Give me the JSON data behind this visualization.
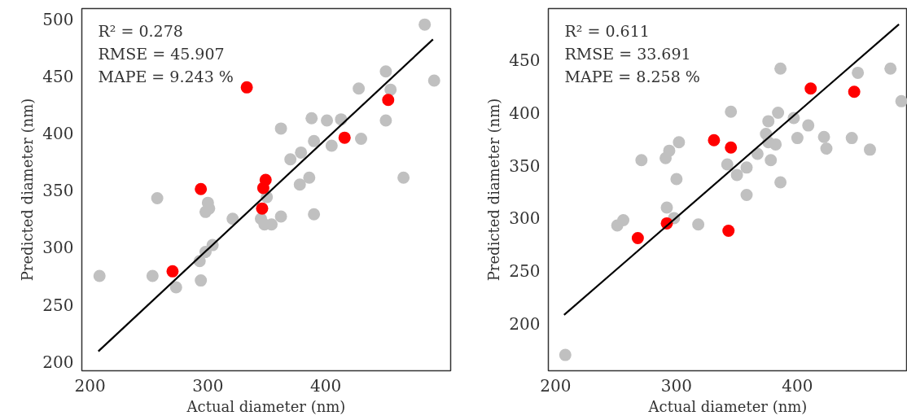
{
  "chart_data": [
    {
      "type": "scatter",
      "xlabel": "Actual diameter (nm)",
      "ylabel": "Predicted diameter (nm)",
      "xlim": [
        193,
        506
      ],
      "ylim": [
        192,
        509
      ],
      "xticks": [
        200,
        300,
        400
      ],
      "yticks": [
        200,
        250,
        300,
        350,
        400,
        450,
        500
      ],
      "annotations": [
        "R² = 0.278",
        "RMSE = 45.907",
        "MAPE = 9.243 %"
      ],
      "series": [
        {
          "marker": "circle",
          "color": "#c0c0c0",
          "x": [
            208,
            253,
            257,
            273,
            294,
            293,
            298,
            304,
            298,
            301,
            300,
            321,
            345,
            348,
            354,
            362,
            390,
            350,
            378,
            386,
            466,
            370,
            379,
            405,
            430,
            390,
            362,
            388,
            401,
            413,
            451,
            428,
            451,
            455,
            492,
            484
          ],
          "values": [
            275,
            275,
            343,
            265,
            271,
            288,
            296,
            302,
            331,
            334,
            339,
            325,
            325,
            320,
            320,
            327,
            329,
            344,
            355,
            361,
            361,
            377,
            383,
            389,
            395,
            393,
            404,
            413,
            411,
            412,
            411,
            439,
            454,
            438,
            446,
            495
          ]
        },
        {
          "marker": "circle",
          "color": "#ff0000",
          "x": [
            270,
            346,
            333,
            453,
            416,
            294,
            349,
            347
          ],
          "values": [
            279,
            334,
            440,
            429,
            396,
            351,
            359,
            352
          ]
        },
        {
          "type": "line",
          "color": "#000000",
          "x": [
            207,
            491
          ],
          "values": [
            209,
            482
          ]
        }
      ]
    },
    {
      "type": "scatter",
      "xlabel": "Actual diameter (nm)",
      "ylabel": "Predicted diameter (nm)",
      "xlim": [
        194,
        491
      ],
      "ylim": [
        155,
        499
      ],
      "xticks": [
        200,
        300,
        400
      ],
      "yticks": [
        200,
        250,
        300,
        350,
        400,
        450
      ],
      "annotations": [
        "R² = 0.611",
        "RMSE = 33.691",
        "MAPE = 8.258 %"
      ],
      "series": [
        {
          "marker": "circle",
          "color": "#c0c0c0",
          "x": [
            386,
            450,
            477,
            486,
            345,
            384,
            376,
            397,
            409,
            374,
            400,
            422,
            445,
            424,
            460,
            382,
            376,
            367,
            378,
            302,
            294,
            291,
            271,
            342,
            358,
            350,
            300,
            386,
            358,
            292,
            251,
            256,
            298,
            318,
            208
          ],
          "values": [
            442,
            438,
            442,
            411,
            401,
            400,
            392,
            395,
            388,
            380,
            376,
            377,
            376,
            366,
            365,
            370,
            372,
            361,
            355,
            372,
            364,
            357,
            355,
            351,
            348,
            341,
            337,
            334,
            322,
            310,
            293,
            298,
            300,
            294,
            170
          ]
        },
        {
          "marker": "circle",
          "color": "#ff0000",
          "x": [
            411,
            447,
            331,
            345,
            268,
            292,
            343
          ],
          "values": [
            423,
            420,
            374,
            367,
            281,
            295,
            288
          ]
        },
        {
          "type": "line",
          "color": "#000000",
          "x": [
            207,
            484
          ],
          "values": [
            208,
            484
          ]
        }
      ]
    }
  ]
}
